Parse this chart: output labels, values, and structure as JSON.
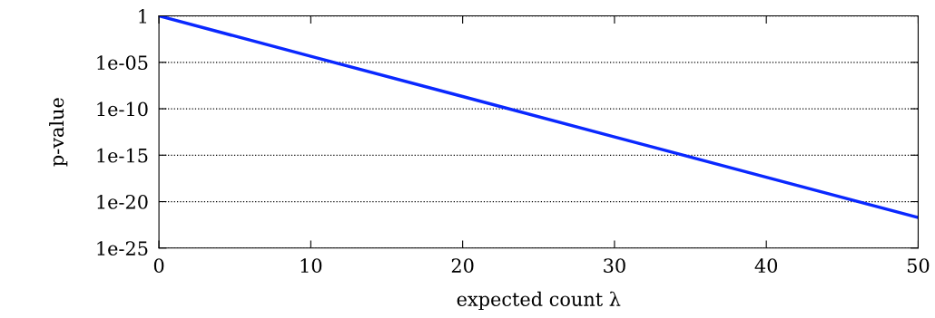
{
  "chart_data": {
    "type": "line",
    "xlabel": "expected count λ",
    "ylabel": "p-value",
    "x": [
      0,
      10,
      20,
      30,
      40,
      50
    ],
    "series": [
      {
        "color": "#0a28ff",
        "values": [
          1,
          4.5e-05,
          2.1e-09,
          9.4e-14,
          4.2e-18,
          1.9e-22
        ]
      }
    ],
    "log": "y",
    "xlim": [
      0,
      50
    ],
    "xticks": [
      0,
      10,
      20,
      30,
      40,
      50
    ],
    "ylim": [
      1e-25,
      1
    ],
    "yticks": [
      {
        "value": 1e-25,
        "label": "1e-25"
      },
      {
        "value": 1e-20,
        "label": "1e-20"
      },
      {
        "value": 1e-15,
        "label": "1e-15"
      },
      {
        "value": 1e-10,
        "label": "1e-10"
      },
      {
        "value": 1e-05,
        "label": "1e-05"
      },
      {
        "value": 1,
        "label": "1"
      }
    ],
    "grid": "y",
    "marker": "none",
    "line_style": "solid"
  }
}
